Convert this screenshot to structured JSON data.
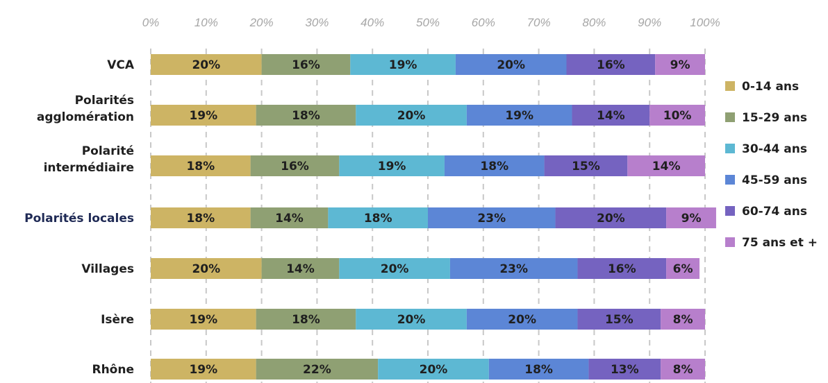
{
  "chart_data": {
    "type": "bar",
    "orientation": "horizontal",
    "stacked": "percent",
    "xlim": [
      0,
      100
    ],
    "x_ticks": [
      "0%",
      "10%",
      "20%",
      "30%",
      "40%",
      "50%",
      "60%",
      "70%",
      "80%",
      "90%",
      "100%"
    ],
    "categories": [
      [
        "VCA"
      ],
      [
        "Polarités",
        "agglomération"
      ],
      [
        "Polarité",
        "intermédiaire"
      ],
      [
        "Polarités locales"
      ],
      [
        "Villages"
      ],
      [
        "Isère"
      ],
      [
        "Rhône"
      ]
    ],
    "series": [
      {
        "name": "0-14 ans",
        "color": "#cdb464",
        "values": [
          20,
          19,
          18,
          18,
          20,
          19,
          19
        ]
      },
      {
        "name": "15-29 ans",
        "color": "#8fa073",
        "values": [
          16,
          18,
          16,
          14,
          14,
          18,
          22
        ]
      },
      {
        "name": "30-44 ans",
        "color": "#5db8d3",
        "values": [
          19,
          20,
          19,
          18,
          20,
          20,
          20
        ]
      },
      {
        "name": "45-59 ans",
        "color": "#5c86d6",
        "values": [
          20,
          19,
          18,
          23,
          23,
          20,
          18
        ]
      },
      {
        "name": "60-74 ans",
        "color": "#7563c0",
        "values": [
          16,
          14,
          15,
          20,
          16,
          15,
          13
        ]
      },
      {
        "name": "75 ans et +",
        "color": "#b77fcc",
        "values": [
          9,
          10,
          14,
          9,
          6,
          8,
          8
        ]
      }
    ],
    "grid": true,
    "legend": "right"
  }
}
